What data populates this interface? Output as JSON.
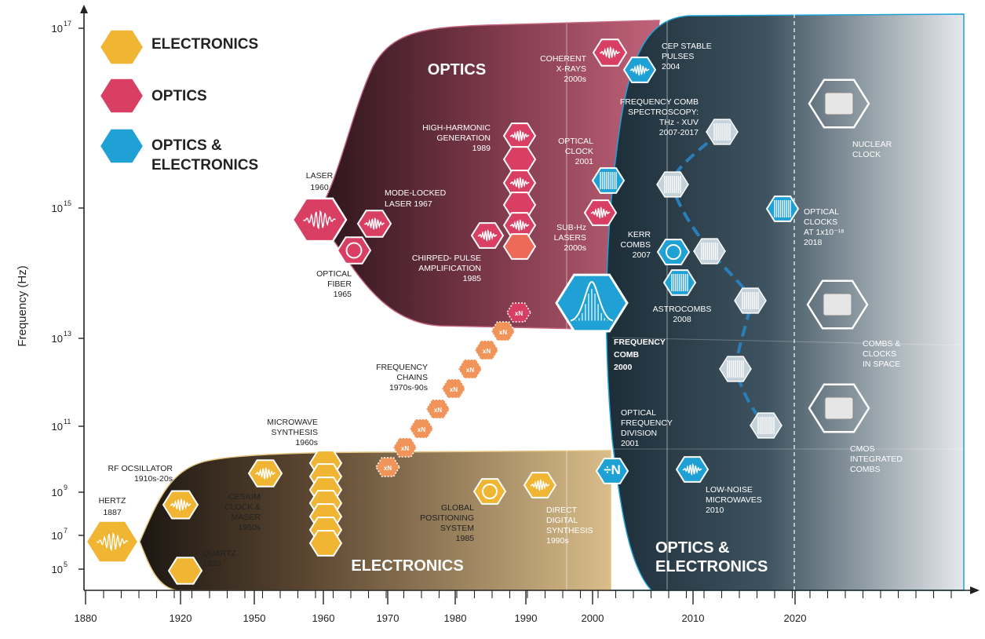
{
  "legend": [
    {
      "label": "ELECTRONICS",
      "color": "#f0b533"
    },
    {
      "label": "OPTICS",
      "color": "#d93f63"
    },
    {
      "label": "OPTICS &",
      "label2": "ELECTRONICS",
      "color": "#1fa1d6"
    }
  ],
  "axes": {
    "ylabel": "Frequency (Hz)",
    "yticks": [
      "10",
      "10",
      "10",
      "10",
      "10",
      "10",
      "10"
    ],
    "yexp": [
      "17",
      "15",
      "13",
      "11",
      "9",
      "7",
      "5"
    ],
    "xticks": [
      "1880",
      "1920",
      "1950",
      "1960",
      "1970",
      "1980",
      "1990",
      "2000",
      "2010",
      "2020"
    ]
  },
  "regions": {
    "optics": "OPTICS",
    "electronics": "ELECTRONICS",
    "oe1": "OPTICS &",
    "oe2": "ELECTRONICS"
  },
  "milestones": {
    "hertz": [
      "HERTZ",
      "1887"
    ],
    "rf": [
      "RF OCSILLATOR",
      "1910s-20s"
    ],
    "quartz": [
      "QUARTZ",
      "1920"
    ],
    "cesium": [
      "CESIUM",
      "CLOCK &",
      "MASER",
      "1950s"
    ],
    "microwave": [
      "MICROWAVE",
      "SYNTHESIS",
      "1960s"
    ],
    "laser": [
      "LASER",
      "1960"
    ],
    "fiber": [
      "OPTICAL",
      "FIBER",
      "1965"
    ],
    "modelocked": [
      "MODE-LOCKED",
      "LASER 1967"
    ],
    "hhg": [
      "HIGH-HARMONIC",
      "GENERATION",
      "1989"
    ],
    "cpa": [
      "CHIRPED- PULSE",
      "AMPLIFICATION",
      "1985"
    ],
    "chains": [
      "FREQUENCY",
      "CHAINS",
      "1970s-90s"
    ],
    "gps": [
      "GLOBAL",
      "POSITIONING",
      "SYSTEM",
      "1985"
    ],
    "dds": [
      "DIRECT",
      "DIGITAL",
      "SYNTHESIS",
      "1990s"
    ],
    "xray": [
      "COHERENT",
      "X-RAYS",
      "2000s"
    ],
    "optclock": [
      "OPTICAL",
      "CLOCK",
      "2001"
    ],
    "subhz": [
      "SUB-Hz",
      "LASERS",
      "2000s"
    ],
    "comb": [
      "FREQUENCY",
      "COMB",
      "2000"
    ],
    "cep": [
      "CEP STABLE",
      "PULSES",
      "2004"
    ],
    "combspec": [
      "FREQUENCY COMB",
      "SPECTROSCOPY:",
      "THz - XUV",
      "2007-2017"
    ],
    "kerr": [
      "KERR",
      "COMBS",
      "2007"
    ],
    "astro": [
      "ASTROCOMBS",
      "2008"
    ],
    "ofd": [
      "OPTICAL",
      "FREQUENCY",
      "DIVISION",
      "2001"
    ],
    "lownoise": [
      "LOW-NOISE",
      "MICROWAVES",
      "2010"
    ],
    "nuclear": [
      "NUCLEAR",
      "CLOCK"
    ],
    "clocks2018": [
      "OPTICAL",
      "CLOCKS",
      "AT 1x10⁻¹⁸",
      "2018"
    ],
    "space": [
      "COMBS &",
      "CLOCKS",
      "IN SPACE"
    ],
    "cmos": [
      "CMOS",
      "INTEGRATED",
      "COMBS"
    ]
  },
  "chain_label": "xN",
  "divide_label": "÷N",
  "colors": {
    "electronics": "#f0b533",
    "optics": "#d93f63",
    "optics_light": "#ee6a58",
    "chain": "#f0945a",
    "oe": "#1fa1d6"
  }
}
